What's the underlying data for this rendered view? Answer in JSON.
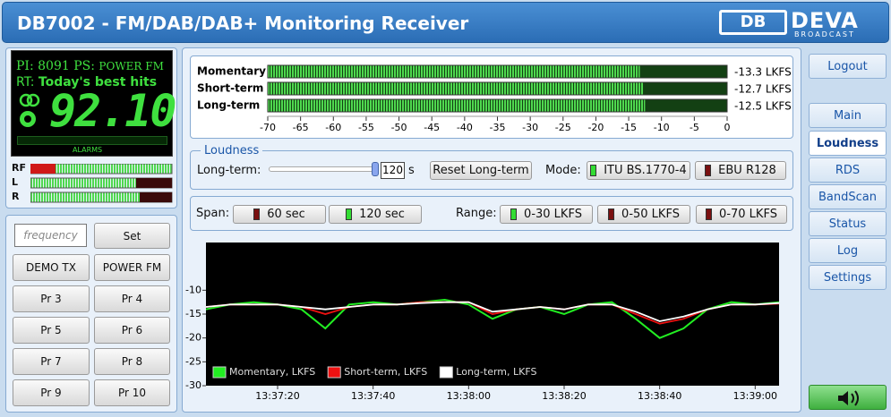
{
  "header": {
    "title": "DB7002 - FM/DAB/DAB+ Monitoring Receiver",
    "logo": "DEVA",
    "logo_sub": "BROADCAST"
  },
  "radio": {
    "pi_label": "PI:",
    "pi": "8091",
    "ps_label": "PS:",
    "ps": "POWER FM",
    "rt_label": "RT:",
    "rt": "Today's best hits",
    "frequency": "92.10",
    "alarms": "ALARMS",
    "meters": [
      "RF",
      "L",
      "R"
    ]
  },
  "presets": {
    "frequency_placeholder": "frequency",
    "set": "Set",
    "buttons": [
      "DEMO TX",
      "POWER FM",
      "Pr 3",
      "Pr 4",
      "Pr 5",
      "Pr 6",
      "Pr 7",
      "Pr 8",
      "Pr 9",
      "Pr 10"
    ]
  },
  "loudness": {
    "legend": "Loudness",
    "long_term_label": "Long-term:",
    "long_term_value": "120",
    "unit": "s",
    "reset": "Reset Long-term",
    "mode_label": "Mode:",
    "modes": [
      "ITU BS.1770-4",
      "EBU R128"
    ]
  },
  "span": {
    "span_label": "Span:",
    "spans": [
      "60 sec",
      "120 sec"
    ],
    "range_label": "Range:",
    "ranges": [
      "0-30 LKFS",
      "0-50 LKFS",
      "0-70 LKFS"
    ]
  },
  "nav": {
    "items": [
      "Logout",
      "Main",
      "Loudness",
      "RDS",
      "BandScan",
      "Status",
      "Log",
      "Settings"
    ]
  },
  "chart_data": [
    {
      "type": "hbar",
      "categories": [
        "Momentary",
        "Short-term",
        "Long-term"
      ],
      "values": [
        -13.3,
        -12.7,
        -12.5
      ],
      "value_labels": [
        "-13.3 LKFS",
        "-12.7 LKFS",
        "-12.5 LKFS"
      ],
      "xlim": [
        -70,
        0
      ],
      "xticks": [
        -70,
        -65,
        -60,
        -55,
        -50,
        -45,
        -40,
        -35,
        -30,
        -25,
        -20,
        -15,
        -10,
        -5,
        0
      ],
      "color": "#4fd84f"
    },
    {
      "type": "line",
      "x": [
        "13:37:05",
        "13:37:10",
        "13:37:15",
        "13:37:20",
        "13:37:25",
        "13:37:30",
        "13:37:35",
        "13:37:40",
        "13:37:45",
        "13:37:50",
        "13:37:55",
        "13:38:00",
        "13:38:05",
        "13:38:10",
        "13:38:15",
        "13:38:20",
        "13:38:25",
        "13:38:30",
        "13:38:35",
        "13:38:40",
        "13:38:45",
        "13:38:50",
        "13:38:55",
        "13:39:00",
        "13:39:05"
      ],
      "series": [
        {
          "name": "Momentary, LKFS",
          "color": "#22ee22",
          "values": [
            -14,
            -13,
            -12.5,
            -13,
            -14,
            -18,
            -13,
            -12.5,
            -13,
            -12.5,
            -12,
            -13,
            -16,
            -14,
            -13.5,
            -15,
            -13,
            -12.5,
            -16,
            -20,
            -18,
            -14,
            -12.5,
            -13,
            -12.5
          ]
        },
        {
          "name": "Short-term, LKFS",
          "color": "#ee1111",
          "values": [
            -13.5,
            -13,
            -13,
            -13,
            -13.5,
            -15,
            -13.5,
            -13,
            -13,
            -12.5,
            -12.5,
            -12.5,
            -15,
            -14,
            -13.5,
            -14,
            -13,
            -13,
            -15,
            -17,
            -16,
            -14,
            -13,
            -13,
            -12.8
          ]
        },
        {
          "name": "Long-term, LKFS",
          "color": "#ffffff",
          "values": [
            -13.5,
            -13,
            -13,
            -13,
            -13.5,
            -14,
            -13.5,
            -13,
            -13,
            -12.7,
            -12.5,
            -12.5,
            -14.5,
            -14,
            -13.5,
            -14,
            -13,
            -13,
            -14.5,
            -16.5,
            -15.5,
            -14,
            -13,
            -13,
            -12.7
          ]
        }
      ],
      "xlim": [
        "13:37:05",
        "13:39:05"
      ],
      "xticks": [
        "13:37:20",
        "13:37:40",
        "13:38:00",
        "13:38:20",
        "13:38:40",
        "13:39:00"
      ],
      "ylim": [
        -30,
        0
      ],
      "yticks": [
        -10,
        -15,
        -20,
        -25,
        -30
      ],
      "grid": false,
      "background": "#000000"
    }
  ]
}
